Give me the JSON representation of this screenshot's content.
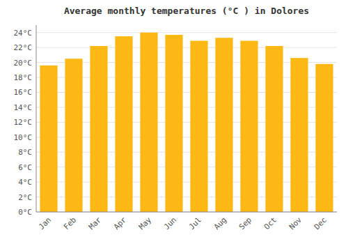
{
  "chart_data": {
    "type": "bar",
    "title": "Average monthly temperatures (°C ) in Dolores",
    "categories": [
      "Jan",
      "Feb",
      "Mar",
      "Apr",
      "May",
      "Jun",
      "Jul",
      "Aug",
      "Sep",
      "Oct",
      "Nov",
      "Dec"
    ],
    "values": [
      19.6,
      20.5,
      22.2,
      23.5,
      24.0,
      23.7,
      22.9,
      23.3,
      22.9,
      22.2,
      20.6,
      19.8
    ],
    "color": "#FDB813",
    "ylim": [
      0,
      25
    ],
    "yticks": [
      {
        "value": 0,
        "label": "0°C"
      },
      {
        "value": 2,
        "label": "2°C"
      },
      {
        "value": 4,
        "label": "4°C"
      },
      {
        "value": 6,
        "label": "6°C"
      },
      {
        "value": 8,
        "label": "8°C"
      },
      {
        "value": 10,
        "label": "10°C"
      },
      {
        "value": 12,
        "label": "12°C"
      },
      {
        "value": 14,
        "label": "14°C"
      },
      {
        "value": 16,
        "label": "16°C"
      },
      {
        "value": 18,
        "label": "18°C"
      },
      {
        "value": 20,
        "label": "20°C"
      },
      {
        "value": 22,
        "label": "22°C"
      },
      {
        "value": 24,
        "label": "24°C"
      }
    ],
    "grid": true
  }
}
